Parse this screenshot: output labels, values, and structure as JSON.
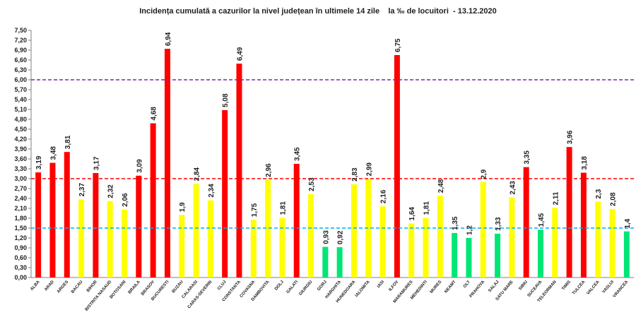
{
  "chart_data": {
    "type": "bar",
    "title": "Incidența cumulată a cazurilor la nivel județean în ultimele 14 zile    la ‰ de locuitori  - 13.12.2020",
    "xlabel": "",
    "ylabel": "",
    "ylim": [
      0,
      7.5
    ],
    "ytick_step": 0.3,
    "grid": false,
    "legend": "none",
    "colors": {
      "red": "#ff0000",
      "yellow": "#ffff00",
      "green": "#00e676"
    },
    "reference_lines": [
      {
        "value": 6.0,
        "color": "#7030a0",
        "style": "dashed"
      },
      {
        "value": 3.0,
        "color": "#ff0000",
        "style": "dashed"
      },
      {
        "value": 1.5,
        "color": "#00b0f0",
        "style": "dashed"
      }
    ],
    "categories": [
      "ALBA",
      "ARAD",
      "ARGES",
      "BACAU",
      "BIHOR",
      "BISTRITA NASAUD",
      "BOTOSANI",
      "BRAILA",
      "BRASOV",
      "BUCURESTI",
      "BUZAU",
      "CALARASI",
      "CARAS-SEVERIN",
      "CLUJ",
      "CONSTANTA",
      "COVASNA",
      "DAMBOVITA",
      "DOLJ",
      "GALATI",
      "GIURGIU",
      "GORJ",
      "HARGHITA",
      "HUNEDOARA",
      "IALOMITA",
      "IASI",
      "ILFOV",
      "MARAMURES",
      "MEHEDINTI",
      "MURES",
      "NEAMT",
      "OLT",
      "PRAHOVA",
      "SALAJ",
      "SATU MARE",
      "SIBIU",
      "SUCEAVA",
      "TELEORMAN",
      "TIMIS",
      "TULCEA",
      "VALCEA",
      "VASLUI",
      "VRANCEA"
    ],
    "values": [
      3.19,
      3.48,
      3.81,
      2.37,
      3.17,
      2.32,
      2.06,
      3.09,
      4.68,
      6.94,
      1.9,
      2.84,
      2.34,
      5.08,
      6.49,
      1.75,
      2.96,
      1.81,
      3.45,
      2.53,
      0.93,
      0.92,
      2.83,
      2.99,
      2.16,
      6.75,
      1.64,
      1.81,
      2.48,
      1.35,
      1.2,
      2.9,
      1.33,
      2.43,
      3.35,
      1.45,
      2.11,
      3.96,
      3.18,
      2.3,
      2.08,
      1.4
    ],
    "value_labels": [
      "3,19",
      "3,48",
      "3,81",
      "2,37",
      "3,17",
      "2,32",
      "2,06",
      "3,09",
      "4,68",
      "6,94",
      "1,9",
      "2,84",
      "2,34",
      "5,08",
      "6,49",
      "1,75",
      "2,96",
      "1,81",
      "3,45",
      "2,53",
      "0,93",
      "0,92",
      "2,83",
      "2,99",
      "2,16",
      "6,75",
      "1,64",
      "1,81",
      "2,48",
      "1,35",
      "1,2",
      "2,9",
      "1,33",
      "2,43",
      "3,35",
      "1,45",
      "2,11",
      "3,96",
      "3,18",
      "2,3",
      "2,08",
      "1,4"
    ],
    "bar_colors": [
      "red",
      "red",
      "red",
      "yellow",
      "red",
      "yellow",
      "yellow",
      "red",
      "red",
      "red",
      "yellow",
      "yellow",
      "yellow",
      "red",
      "red",
      "yellow",
      "yellow",
      "yellow",
      "red",
      "yellow",
      "green",
      "green",
      "yellow",
      "yellow",
      "yellow",
      "red",
      "yellow",
      "yellow",
      "yellow",
      "green",
      "green",
      "yellow",
      "green",
      "yellow",
      "red",
      "green",
      "yellow",
      "red",
      "red",
      "yellow",
      "yellow",
      "green"
    ],
    "yticks": [
      "0,00",
      "0,30",
      "0,60",
      "0,90",
      "1,20",
      "1,50",
      "1,80",
      "2,10",
      "2,40",
      "2,70",
      "3,00",
      "3,30",
      "3,60",
      "3,90",
      "4,20",
      "4,50",
      "4,80",
      "5,10",
      "5,40",
      "5,70",
      "6,00",
      "6,30",
      "6,60",
      "6,90",
      "7,20",
      "7,50"
    ]
  }
}
